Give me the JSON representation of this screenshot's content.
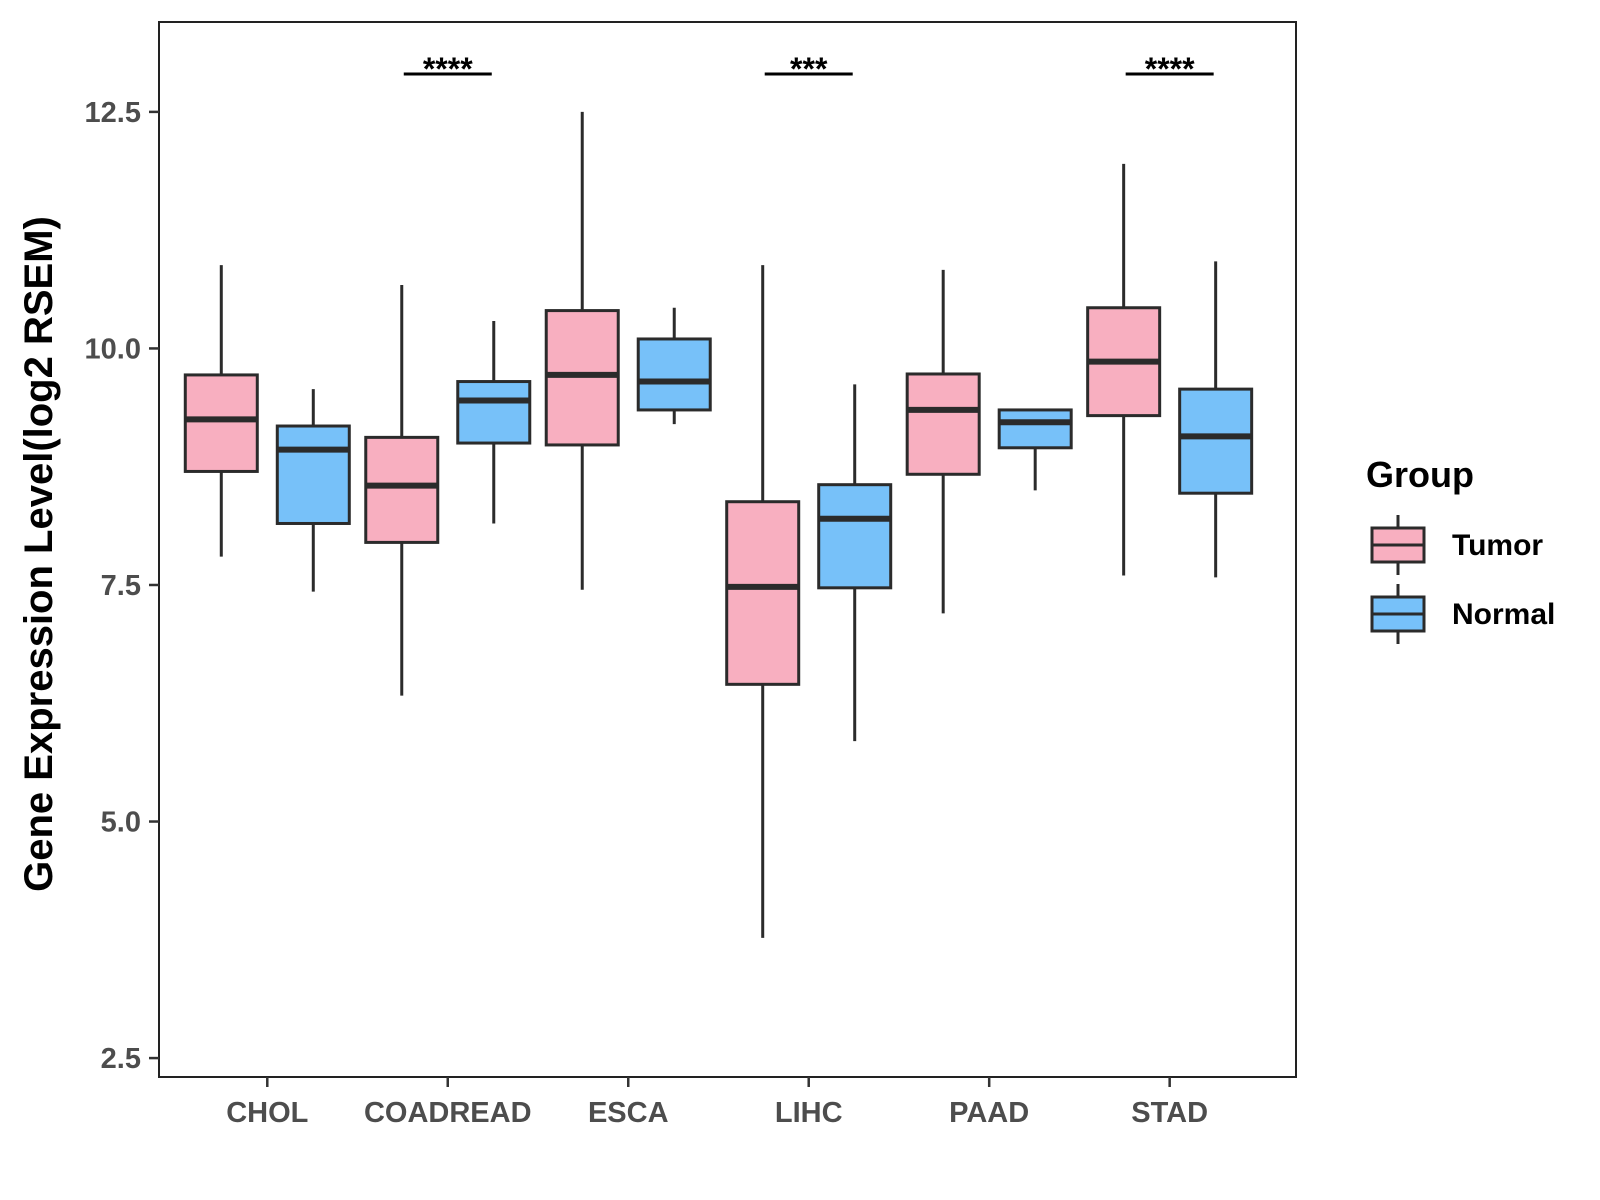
{
  "chart_data": {
    "type": "boxplot",
    "title": "",
    "xlabel": "",
    "ylabel": "Gene Expression Level(log2 RSEM)",
    "ylim": [
      2.3,
      13.45
    ],
    "yticks": [
      "2.5",
      "5.0",
      "7.5",
      "10.0",
      "12.5"
    ],
    "ytick_values": [
      2.5,
      5.0,
      7.5,
      10.0,
      12.5
    ],
    "categories": [
      "CHOL",
      "COADREAD",
      "ESCA",
      "LIHC",
      "PAAD",
      "STAD"
    ],
    "legend": {
      "title": "Group",
      "position": "right",
      "entries": [
        {
          "name": "Tumor",
          "color": "#F8AFC0"
        },
        {
          "name": "Normal",
          "color": "#77C1F9"
        }
      ]
    },
    "series": [
      {
        "name": "Tumor",
        "color": "#F8AFC0",
        "boxes": [
          {
            "min": 7.8,
            "q1": 8.7,
            "median": 9.25,
            "q3": 9.72,
            "max": 10.88
          },
          {
            "min": 6.33,
            "q1": 7.95,
            "median": 8.55,
            "q3": 9.06,
            "max": 10.67
          },
          {
            "min": 7.45,
            "q1": 8.98,
            "median": 9.72,
            "q3": 10.4,
            "max": 12.5
          },
          {
            "min": 3.77,
            "q1": 6.45,
            "median": 7.48,
            "q3": 8.38,
            "max": 10.88
          },
          {
            "min": 7.2,
            "q1": 8.67,
            "median": 9.35,
            "q3": 9.73,
            "max": 10.83
          },
          {
            "min": 7.6,
            "q1": 9.29,
            "median": 9.86,
            "q3": 10.43,
            "max": 11.95
          }
        ]
      },
      {
        "name": "Normal",
        "color": "#77C1F9",
        "boxes": [
          {
            "min": 7.43,
            "q1": 8.15,
            "median": 8.93,
            "q3": 9.18,
            "max": 9.57
          },
          {
            "min": 8.15,
            "q1": 9.0,
            "median": 9.45,
            "q3": 9.65,
            "max": 10.29
          },
          {
            "min": 9.2,
            "q1": 9.35,
            "median": 9.65,
            "q3": 10.1,
            "max": 10.43
          },
          {
            "min": 5.85,
            "q1": 7.47,
            "median": 8.2,
            "q3": 8.56,
            "max": 9.62
          },
          {
            "min": 8.5,
            "q1": 8.95,
            "median": 9.22,
            "q3": 9.35,
            "max": 9.35
          },
          {
            "min": 7.58,
            "q1": 8.47,
            "median": 9.07,
            "q3": 9.57,
            "max": 10.92
          }
        ]
      }
    ],
    "significance": [
      {
        "category": "COADREAD",
        "label": "****"
      },
      {
        "category": "LIHC",
        "label": "***"
      },
      {
        "category": "STAD",
        "label": "****"
      }
    ]
  }
}
